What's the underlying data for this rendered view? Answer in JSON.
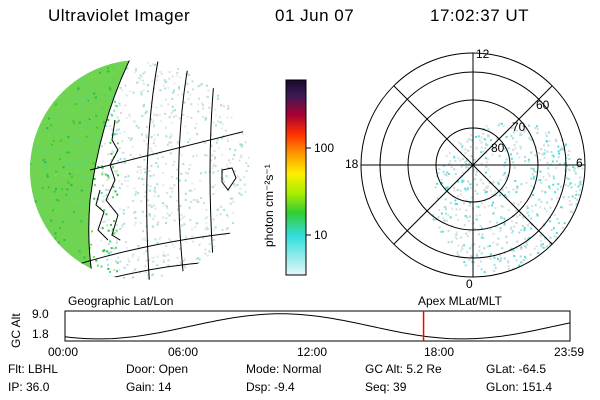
{
  "header": {
    "instrument": "Ultraviolet Imager",
    "date": "01 Jun 07",
    "time": "17:02:37 UT"
  },
  "colorbar": {
    "unit_label": "photon cm⁻²s⁻¹",
    "ticks": [
      "100",
      "10"
    ]
  },
  "polar": {
    "mlt_labels": [
      "12",
      "18",
      "6",
      "0"
    ],
    "lat_labels": [
      "60",
      "70",
      "80"
    ]
  },
  "panel_labels": {
    "left": "Geographic Lat/Lon",
    "right": "Apex MLat/MLT"
  },
  "altitude_plot": {
    "axis_label": "GC Alt",
    "y_ticks": [
      "9.0",
      "1.8"
    ],
    "x_ticks": [
      "00:00",
      "06:00",
      "12:00",
      "18:00",
      "23:59"
    ],
    "marker_time_hours": 17.04,
    "marker_color": "#ff0000"
  },
  "footer": {
    "flt": "Flt: LBHL",
    "ip": "IP: 36.0",
    "door": "Door: Open",
    "gain": "Gain: 14",
    "mode": "Mode: Normal",
    "dsp": "Dsp:   -9.4",
    "gc_alt": "GC Alt: 5.2 Re",
    "seq": "Seq: 39",
    "glat": "GLat:  -64.5",
    "glon": "GLon: 151.4"
  },
  "colors": {
    "colorbar_top": "#1a0a2a",
    "colorbar_red": "#cc0000",
    "colorbar_orange": "#ff9900",
    "colorbar_yellow": "#ffee00",
    "colorbar_green": "#33cc33",
    "colorbar_cyan": "#33dddd",
    "colorbar_pale": "#e6f7f7",
    "aurora_green": "#33cc33",
    "aurora_cyan": "#55dddd"
  }
}
